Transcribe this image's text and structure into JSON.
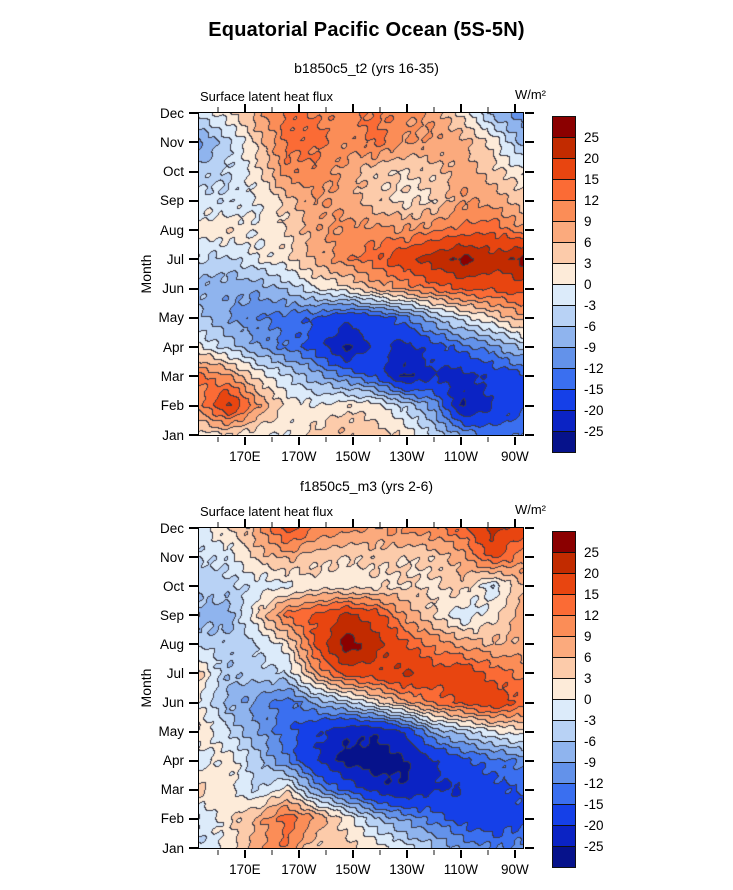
{
  "title": "Equatorial Pacific Ocean (5S-5N)",
  "ylabel": "Month",
  "months_top_to_bottom": [
    "Dec",
    "Nov",
    "Oct",
    "Sep",
    "Aug",
    "Jul",
    "Jun",
    "May",
    "Apr",
    "Mar",
    "Feb",
    "Jan"
  ],
  "x_axis": {
    "major_labels": [
      "170E",
      "170W",
      "150W",
      "130W",
      "110W",
      "90W"
    ],
    "major_deg": [
      170,
      190,
      210,
      230,
      250,
      270
    ],
    "minor_deg": [
      160,
      180,
      200,
      220,
      240,
      260
    ],
    "domain_deg_east": [
      153,
      273
    ]
  },
  "colorbar": {
    "boundary_labels": [
      "25",
      "20",
      "15",
      "12",
      "9",
      "6",
      "3",
      "0",
      "-3",
      "-6",
      "-9",
      "-12",
      "-15",
      "-20",
      "-25"
    ],
    "colors": [
      "#8b0000",
      "#c22b00",
      "#e84510",
      "#fb6b35",
      "#fb8d57",
      "#fbaa7d",
      "#fccbaa",
      "#fdebd9",
      "#dcebfa",
      "#b8d2f5",
      "#8fb4ee",
      "#6392ea",
      "#3a6ff0",
      "#1540e8",
      "#0b23c4",
      "#06128b"
    ]
  },
  "panels": [
    {
      "subtitle": "b1850c5_t2 (yrs 16-35)",
      "field_label": "Surface latent heat flux",
      "units_label": "W/m²"
    },
    {
      "subtitle": "f1850c5_m3 (yrs 2-6)",
      "field_label": "Surface latent heat flux",
      "units_label": "W/m²"
    }
  ],
  "chart_data": [
    {
      "type": "heatmap",
      "title": "b1850c5_t2 (yrs 16-35)",
      "field": "Surface latent heat flux",
      "units": "W/m2",
      "levels_descending": [
        25,
        20,
        15,
        12,
        9,
        6,
        3,
        0,
        -3,
        -6,
        -9,
        -12,
        -15,
        -20,
        -25
      ],
      "row_order": "Dec (top) to Jan (bottom)",
      "columns_note": "12 columns evenly spanning ~155E to ~90W",
      "x_tick_labels": [
        "170E",
        "170W",
        "150W",
        "130W",
        "110W",
        "90W"
      ],
      "grid": [
        [
          -2,
          2,
          8,
          13,
          12,
          10,
          13,
          10,
          8,
          2,
          -7,
          -11
        ],
        [
          -10,
          -4,
          4,
          13,
          13,
          10,
          13,
          9,
          9,
          7,
          2,
          -7
        ],
        [
          -5,
          -3,
          2,
          11,
          11,
          8,
          4,
          3,
          4,
          8,
          4,
          1
        ],
        [
          -1,
          -3,
          0,
          4,
          9,
          8,
          4,
          2,
          3,
          9,
          8,
          4
        ],
        [
          1,
          3,
          0,
          3,
          8,
          10,
          10,
          9,
          11,
          13,
          14,
          10
        ],
        [
          -3,
          -4,
          0,
          2,
          7,
          11,
          14,
          18,
          23,
          27,
          22,
          27
        ],
        [
          -7,
          -8,
          -8,
          -5,
          0,
          2,
          7,
          10,
          13,
          16,
          16,
          17
        ],
        [
          -5,
          -9,
          -12,
          -13,
          -15,
          -18,
          -17,
          -13,
          -6,
          -1,
          3,
          8
        ],
        [
          0,
          -4,
          -9,
          -13,
          -17,
          -27,
          -18,
          -22,
          -17,
          -13,
          -10,
          -5
        ],
        [
          13,
          9,
          2,
          -3,
          -8,
          -12,
          -16,
          -26,
          -21,
          -22,
          -18,
          -16
        ],
        [
          10,
          21,
          9,
          2,
          0,
          2,
          1,
          -4,
          -10,
          -26,
          -20,
          -16
        ],
        [
          2,
          3,
          1,
          0,
          4,
          6,
          5,
          2,
          -4,
          -10,
          -13,
          -12
        ]
      ]
    },
    {
      "type": "heatmap",
      "title": "f1850c5_m3 (yrs 2-6)",
      "field": "Surface latent heat flux",
      "units": "W/m2",
      "levels_descending": [
        25,
        20,
        15,
        12,
        9,
        6,
        3,
        0,
        -3,
        -6,
        -9,
        -12,
        -15,
        -20,
        -25
      ],
      "row_order": "Dec (top) to Jan (bottom)",
      "columns_note": "12 columns evenly spanning ~155E to ~90W",
      "x_tick_labels": [
        "170E",
        "170W",
        "150W",
        "130W",
        "110W",
        "90W"
      ],
      "grid": [
        [
          -2,
          3,
          8,
          17,
          12,
          10,
          9,
          10,
          11,
          14,
          22,
          17
        ],
        [
          -3,
          -2,
          4,
          7,
          4,
          3,
          4,
          3,
          4,
          8,
          16,
          10
        ],
        [
          -5,
          -4,
          -2,
          -1,
          2,
          1,
          2,
          3,
          2,
          5,
          -3,
          6
        ],
        [
          -7,
          -8,
          3,
          13,
          16,
          21,
          17,
          9,
          3,
          -3,
          2,
          8
        ],
        [
          -4,
          -5,
          -3,
          2,
          16,
          28,
          22,
          15,
          11,
          8,
          6,
          7
        ],
        [
          4,
          -6,
          -4,
          -3,
          9,
          17,
          18,
          21,
          17,
          18,
          14,
          11
        ],
        [
          0,
          -7,
          -10,
          -14,
          -8,
          -4,
          2,
          8,
          13,
          16,
          19,
          14
        ],
        [
          3,
          -3,
          -9,
          -14,
          -19,
          -23,
          -24,
          -19,
          -8,
          -4,
          0,
          2
        ],
        [
          -2,
          2,
          -5,
          -12,
          -20,
          -27,
          -28,
          -26,
          -20,
          -16,
          -13,
          -11
        ],
        [
          4,
          1,
          -4,
          2,
          -10,
          -16,
          -22,
          -25,
          -21,
          -20,
          -17,
          -14
        ],
        [
          -3,
          2,
          7,
          14,
          9,
          2,
          -6,
          -10,
          -13,
          -17,
          -19,
          -17
        ],
        [
          -3,
          1,
          8,
          12,
          3,
          4,
          2,
          -2,
          -6,
          -10,
          -12,
          -11
        ]
      ]
    }
  ]
}
